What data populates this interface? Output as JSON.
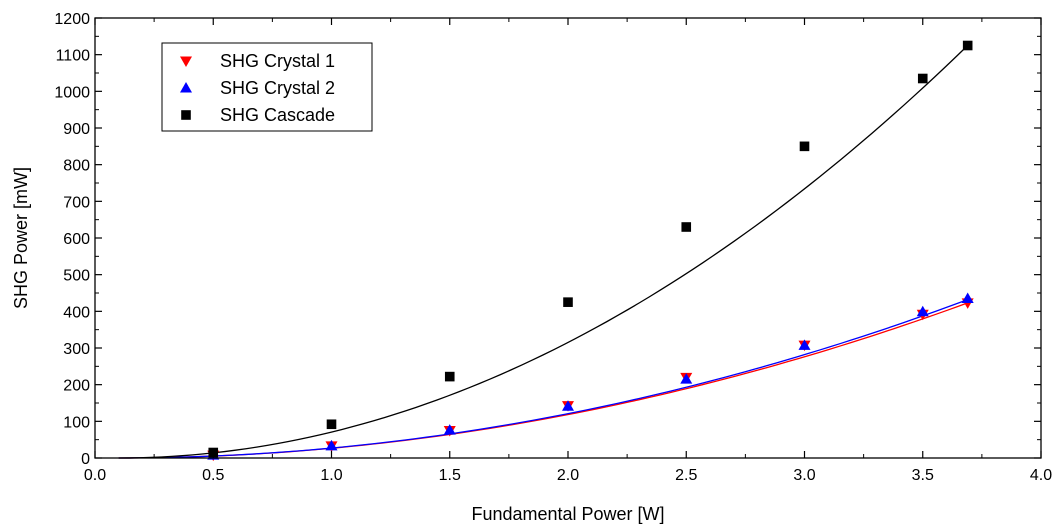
{
  "chart_data": {
    "type": "scatter",
    "xlabel": "Fundamental Power [W]",
    "ylabel": "SHG Power [mW]",
    "xlim": [
      0.0,
      4.0
    ],
    "ylim": [
      0,
      1200
    ],
    "xticks": [
      0.0,
      0.5,
      1.0,
      1.5,
      2.0,
      2.5,
      3.0,
      3.5,
      4.0
    ],
    "xtick_labels": [
      "0.0",
      "0.5",
      "1.0",
      "1.5",
      "2.0",
      "2.5",
      "3.0",
      "3.5",
      "4.0"
    ],
    "yticks": [
      0,
      100,
      200,
      300,
      400,
      500,
      600,
      700,
      800,
      900,
      1000,
      1100,
      1200
    ],
    "ytick_labels": [
      "0",
      "100",
      "200",
      "300",
      "400",
      "500",
      "600",
      "700",
      "800",
      "900",
      "1000",
      "1100",
      "1200"
    ],
    "grid": false,
    "legend_position": "top-left",
    "series": [
      {
        "name": "SHG Crystal 1",
        "marker": "triangle-down",
        "color": "#ff0000",
        "x": [
          0.5,
          1.0,
          1.5,
          2.0,
          2.5,
          3.0,
          3.5,
          3.69
        ],
        "y": [
          8,
          33,
          75,
          143,
          220,
          308,
          392,
          423
        ],
        "fit_line": {
          "x_start": 0.1,
          "x_end": 3.69,
          "y_end": 423
        }
      },
      {
        "name": "SHG Crystal 2",
        "marker": "triangle-up",
        "color": "#0000ff",
        "x": [
          0.5,
          1.0,
          1.5,
          2.0,
          2.5,
          3.0,
          3.5,
          3.69
        ],
        "y": [
          8,
          33,
          76,
          141,
          215,
          307,
          399,
          435
        ],
        "fit_line": {
          "x_start": 0.1,
          "x_end": 3.69,
          "y_end": 432
        }
      },
      {
        "name": "SHG Cascade",
        "marker": "square",
        "color": "#000000",
        "x": [
          0.5,
          1.0,
          1.5,
          2.0,
          2.5,
          3.0,
          3.5,
          3.69
        ],
        "y": [
          15,
          92,
          222,
          425,
          630,
          850,
          1035,
          1125
        ],
        "fit_line": {
          "x_start": 0.1,
          "x_end": 3.69,
          "y_end": 1125
        }
      }
    ]
  }
}
